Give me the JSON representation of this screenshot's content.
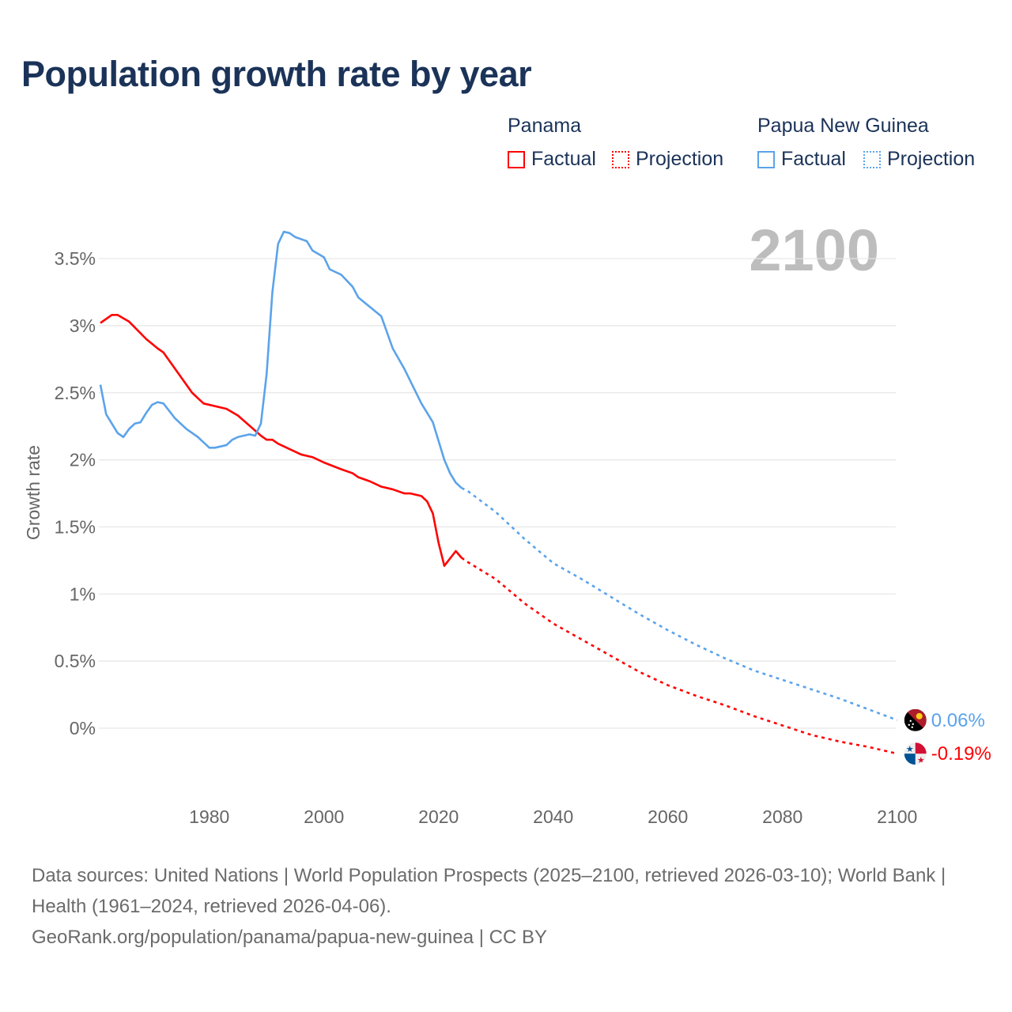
{
  "title": "Population growth rate by year",
  "legend": {
    "groups": [
      {
        "name": "Panama",
        "factual": "Factual",
        "projection": "Projection",
        "color": "#ff0000"
      },
      {
        "name": "Papua New Guinea",
        "factual": "Factual",
        "projection": "Projection",
        "color": "#5ba3eb"
      }
    ]
  },
  "footer": {
    "sources": "Data sources: United Nations | World Population Prospects (2025–2100, retrieved 2026-03-10); World Bank | Health (1961–2024, retrieved 2026-04-06).",
    "credit": "GeoRank.org/population/panama/papua-new-guinea | CC BY"
  },
  "chart_data": {
    "type": "line",
    "title": "Population growth rate by year",
    "ylabel": "Growth rate",
    "xlabel": "",
    "year_label": "2100",
    "xlim": [
      1961,
      2100
    ],
    "ylim": [
      -0.5,
      3.9
    ],
    "grid": true,
    "x_ticks": [
      {
        "v": 1980,
        "label": "1980"
      },
      {
        "v": 2000,
        "label": "2000"
      },
      {
        "v": 2020,
        "label": "2020"
      },
      {
        "v": 2040,
        "label": "2040"
      },
      {
        "v": 2060,
        "label": "2060"
      },
      {
        "v": 2080,
        "label": "2080"
      },
      {
        "v": 2100,
        "label": "2100"
      }
    ],
    "y_ticks": [
      {
        "v": 0,
        "label": "0%"
      },
      {
        "v": 0.5,
        "label": "0.5%"
      },
      {
        "v": 1,
        "label": "1%"
      },
      {
        "v": 1.5,
        "label": "1.5%"
      },
      {
        "v": 2,
        "label": "2%"
      },
      {
        "v": 2.5,
        "label": "2.5%"
      },
      {
        "v": 3,
        "label": "3%"
      },
      {
        "v": 3.5,
        "label": "3.5%"
      }
    ],
    "series": [
      {
        "name": "Panama",
        "color": "#ff0000",
        "end_label": "-0.19%",
        "flag": "panama-flag",
        "factual": [
          [
            1961,
            3.02
          ],
          [
            1963,
            3.08
          ],
          [
            1964,
            3.08
          ],
          [
            1966,
            3.03
          ],
          [
            1969,
            2.9
          ],
          [
            1971,
            2.83
          ],
          [
            1972,
            2.8
          ],
          [
            1977,
            2.5
          ],
          [
            1979,
            2.42
          ],
          [
            1983,
            2.38
          ],
          [
            1985,
            2.33
          ],
          [
            1989,
            2.18
          ],
          [
            1990,
            2.15
          ],
          [
            1991,
            2.15
          ],
          [
            1992,
            2.12
          ],
          [
            1996,
            2.04
          ],
          [
            1998,
            2.02
          ],
          [
            2000,
            1.98
          ],
          [
            2003,
            1.93
          ],
          [
            2005,
            1.9
          ],
          [
            2006,
            1.87
          ],
          [
            2008,
            1.84
          ],
          [
            2010,
            1.8
          ],
          [
            2012,
            1.78
          ],
          [
            2014,
            1.75
          ],
          [
            2015,
            1.75
          ],
          [
            2017,
            1.73
          ],
          [
            2018,
            1.69
          ],
          [
            2019,
            1.6
          ],
          [
            2020,
            1.38
          ],
          [
            2021,
            1.21
          ],
          [
            2023,
            1.32
          ],
          [
            2024,
            1.27
          ]
        ],
        "projection": [
          [
            2024,
            1.27
          ],
          [
            2025,
            1.24
          ],
          [
            2030,
            1.11
          ],
          [
            2035,
            0.93
          ],
          [
            2040,
            0.78
          ],
          [
            2045,
            0.66
          ],
          [
            2050,
            0.54
          ],
          [
            2055,
            0.42
          ],
          [
            2060,
            0.32
          ],
          [
            2065,
            0.24
          ],
          [
            2070,
            0.17
          ],
          [
            2075,
            0.09
          ],
          [
            2080,
            0.02
          ],
          [
            2085,
            -0.05
          ],
          [
            2090,
            -0.1
          ],
          [
            2095,
            -0.14
          ],
          [
            2100,
            -0.19
          ]
        ]
      },
      {
        "name": "Papua New Guinea",
        "color": "#5ba3eb",
        "end_label": "0.06%",
        "flag": "papua-new-guinea-flag",
        "factual": [
          [
            1961,
            2.56
          ],
          [
            1962,
            2.34
          ],
          [
            1963,
            2.27
          ],
          [
            1964,
            2.2
          ],
          [
            1965,
            2.17
          ],
          [
            1966,
            2.23
          ],
          [
            1967,
            2.27
          ],
          [
            1968,
            2.28
          ],
          [
            1969,
            2.35
          ],
          [
            1970,
            2.41
          ],
          [
            1971,
            2.43
          ],
          [
            1972,
            2.42
          ],
          [
            1974,
            2.31
          ],
          [
            1976,
            2.23
          ],
          [
            1978,
            2.17
          ],
          [
            1980,
            2.09
          ],
          [
            1981,
            2.09
          ],
          [
            1983,
            2.11
          ],
          [
            1984,
            2.15
          ],
          [
            1985,
            2.17
          ],
          [
            1987,
            2.19
          ],
          [
            1988,
            2.18
          ],
          [
            1989,
            2.27
          ],
          [
            1990,
            2.64
          ],
          [
            1991,
            3.25
          ],
          [
            1992,
            3.61
          ],
          [
            1993,
            3.7
          ],
          [
            1994,
            3.69
          ],
          [
            1995,
            3.66
          ],
          [
            1997,
            3.63
          ],
          [
            1998,
            3.56
          ],
          [
            2000,
            3.51
          ],
          [
            2001,
            3.42
          ],
          [
            2003,
            3.38
          ],
          [
            2005,
            3.29
          ],
          [
            2006,
            3.21
          ],
          [
            2008,
            3.14
          ],
          [
            2010,
            3.07
          ],
          [
            2012,
            2.83
          ],
          [
            2014,
            2.68
          ],
          [
            2017,
            2.42
          ],
          [
            2019,
            2.28
          ],
          [
            2021,
            2.0
          ],
          [
            2022,
            1.9
          ],
          [
            2023,
            1.83
          ],
          [
            2024,
            1.79
          ]
        ],
        "projection": [
          [
            2024,
            1.79
          ],
          [
            2025,
            1.77
          ],
          [
            2030,
            1.61
          ],
          [
            2035,
            1.41
          ],
          [
            2040,
            1.23
          ],
          [
            2045,
            1.11
          ],
          [
            2050,
            0.98
          ],
          [
            2055,
            0.85
          ],
          [
            2060,
            0.73
          ],
          [
            2065,
            0.62
          ],
          [
            2070,
            0.52
          ],
          [
            2075,
            0.43
          ],
          [
            2080,
            0.36
          ],
          [
            2085,
            0.29
          ],
          [
            2090,
            0.22
          ],
          [
            2095,
            0.14
          ],
          [
            2100,
            0.06
          ]
        ]
      }
    ]
  }
}
